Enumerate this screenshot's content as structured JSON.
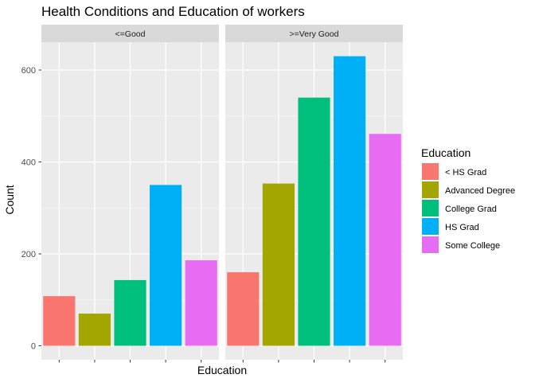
{
  "chart_data": {
    "type": "bar",
    "title": "Health Conditions and Education of workers",
    "xlabel": "Education",
    "ylabel": "Count",
    "ylim": [
      0,
      630
    ],
    "yticks": [
      0,
      200,
      400,
      600
    ],
    "grid": true,
    "categories": [
      "< HS Grad",
      "Advanced Degree",
      "College Grad",
      "HS Grad",
      "Some College"
    ],
    "facets": [
      {
        "name": "<=Good",
        "values": [
          108,
          70,
          143,
          350,
          186
        ]
      },
      {
        "name": ">=Very Good",
        "values": [
          160,
          353,
          540,
          630,
          461
        ]
      }
    ],
    "legend": {
      "title": "Education",
      "position": "right",
      "entries": [
        "< HS Grad",
        "Advanced Degree",
        "College Grad",
        "HS Grad",
        "Some College"
      ],
      "colors": [
        "#F8766D",
        "#A3A500",
        "#00BF7D",
        "#00B0F6",
        "#E76BF3"
      ]
    }
  }
}
